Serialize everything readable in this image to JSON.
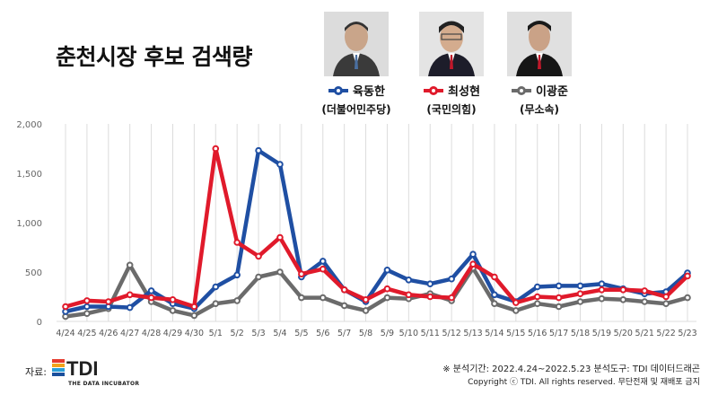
{
  "title": "춘천시장 후보 검색량",
  "candidates": [
    {
      "name": "육동한",
      "party": "(더불어민주당)",
      "color": "#1f4fa3"
    },
    {
      "name": "최성현",
      "party": "(국민의힘)",
      "color": "#e01a2b"
    },
    {
      "name": "이광준",
      "party": "(무소속)",
      "color": "#6b6b6b"
    }
  ],
  "footer": {
    "source_label": "자료:",
    "logo_text": "TDI",
    "logo_sub": "THE DATA INCUBATOR",
    "period_note": "※ 분석기간: 2022.4.24~2022.5.23   분석도구: TDI 데이터드래곤",
    "copyright": "Copyright ⓒ TDI. All rights reserved. 무단전재 및 재배포 금지"
  },
  "chart_data": {
    "type": "line",
    "categories": [
      "4/24",
      "4/25",
      "4/26",
      "4/27",
      "4/28",
      "4/29",
      "4/30",
      "5/1",
      "5/2",
      "5/3",
      "5/4",
      "5/5",
      "5/6",
      "5/7",
      "5/8",
      "5/9",
      "5/10",
      "5/11",
      "5/12",
      "5/13",
      "5/14",
      "5/15",
      "5/16",
      "5/17",
      "5/18",
      "5/19",
      "5/20",
      "5/21",
      "5/22",
      "5/23"
    ],
    "yticks": [
      "0",
      "500",
      "1,000",
      "1,500",
      "2,000"
    ],
    "ylim": [
      0,
      2000
    ],
    "grid": "vertical",
    "series": [
      {
        "name": "육동한",
        "color": "#1f4fa3",
        "values": [
          100,
          150,
          150,
          140,
          310,
          180,
          130,
          350,
          470,
          1730,
          1590,
          450,
          610,
          320,
          200,
          520,
          420,
          380,
          430,
          680,
          270,
          200,
          350,
          360,
          360,
          380,
          330,
          280,
          300,
          490
        ]
      },
      {
        "name": "최성현",
        "color": "#e01a2b",
        "values": [
          150,
          210,
          200,
          270,
          240,
          220,
          150,
          1750,
          800,
          660,
          850,
          480,
          530,
          320,
          220,
          330,
          270,
          250,
          240,
          580,
          450,
          190,
          250,
          240,
          280,
          320,
          320,
          310,
          250,
          460
        ]
      },
      {
        "name": "이광준",
        "color": "#6b6b6b",
        "values": [
          50,
          80,
          130,
          570,
          200,
          110,
          60,
          180,
          210,
          450,
          500,
          240,
          240,
          160,
          110,
          240,
          230,
          280,
          210,
          540,
          180,
          110,
          180,
          150,
          200,
          230,
          220,
          200,
          180,
          240
        ]
      }
    ]
  }
}
